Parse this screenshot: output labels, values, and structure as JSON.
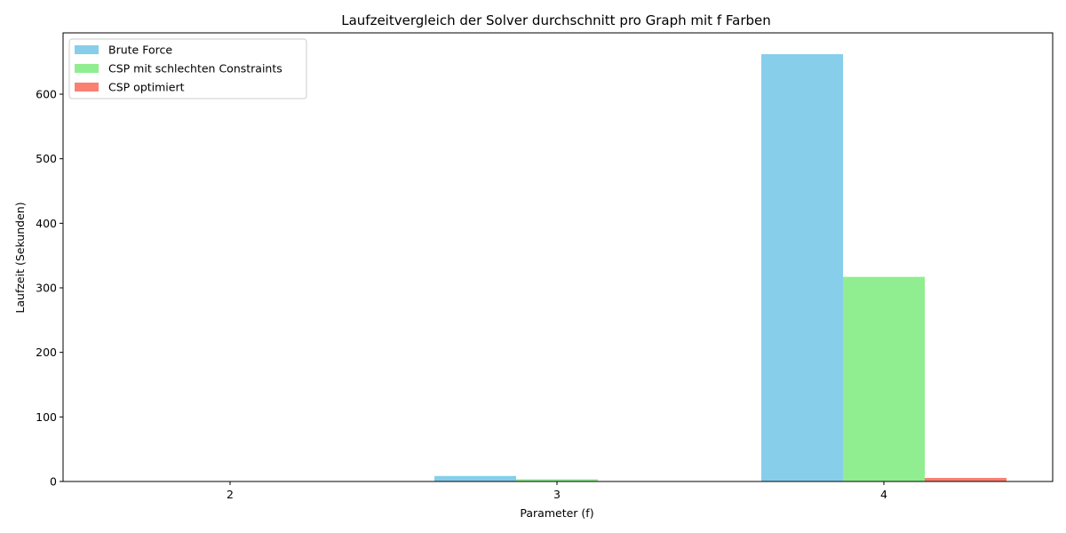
{
  "chart_data": {
    "type": "bar",
    "title": "Laufzeitvergleich der Solver durchschnitt pro Graph mit f Farben",
    "xlabel": "Parameter (f)",
    "ylabel": "Laufzeit (Sekunden)",
    "categories": [
      "2",
      "3",
      "4"
    ],
    "series": [
      {
        "name": "Brute Force",
        "color": "#87CEEB",
        "values": [
          0.02,
          8.5,
          662
        ]
      },
      {
        "name": "CSP mit schlechten Constraints",
        "color": "#90EE90",
        "values": [
          0.01,
          3.5,
          317
        ]
      },
      {
        "name": "CSP optimiert",
        "color": "#FA8072",
        "values": [
          0.005,
          0.3,
          5.5
        ]
      }
    ],
    "ylim": [
      0,
      695
    ],
    "yticks": [
      0,
      100,
      200,
      300,
      400,
      500,
      600
    ],
    "grid": false,
    "legend_position": "upper-left"
  }
}
